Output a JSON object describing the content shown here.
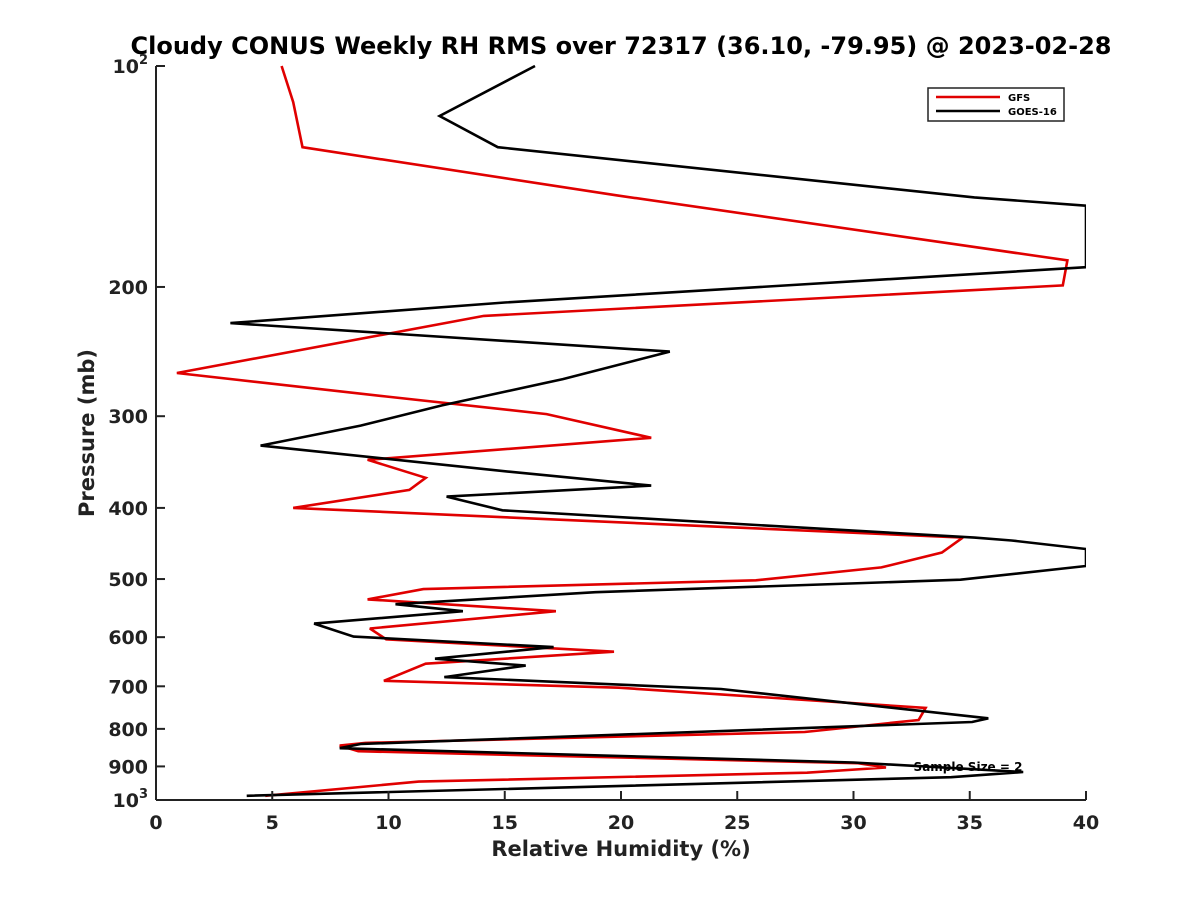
{
  "chart_data": {
    "type": "line",
    "title": "Cloudy CONUS Weekly RH RMS over 72317 (36.10, -79.95) @ 2023-02-28",
    "xlabel": "Relative Humidity (%)",
    "ylabel": "Pressure (mb)",
    "xlim": [
      0,
      40
    ],
    "ylim": [
      100,
      1000
    ],
    "y_scale": "log",
    "y_reversed": true,
    "grid": false,
    "legend_position": "top-right",
    "x_ticks": [
      "0",
      "5",
      "10",
      "15",
      "20",
      "25",
      "30",
      "35",
      "40"
    ],
    "y_ticks": [
      {
        "value": 100,
        "base": "10",
        "exp": "2"
      },
      {
        "value": 200,
        "label": "200"
      },
      {
        "value": 300,
        "label": "300"
      },
      {
        "value": 400,
        "label": "400"
      },
      {
        "value": 500,
        "label": "500"
      },
      {
        "value": 600,
        "label": "600"
      },
      {
        "value": 700,
        "label": "700"
      },
      {
        "value": 800,
        "label": "800"
      },
      {
        "value": 900,
        "label": "900"
      },
      {
        "value": 1000,
        "base": "10",
        "exp": "3"
      }
    ],
    "annotation": "Sample Size = 2",
    "series": [
      {
        "name": "GFS",
        "color": "#e00000",
        "points": [
          [
            5.4,
            100
          ],
          [
            5.9,
            112
          ],
          [
            6.3,
            129
          ],
          [
            19.8,
            150
          ],
          [
            39.2,
            184
          ],
          [
            39.0,
            199
          ],
          [
            14.1,
            219
          ],
          [
            0.9,
            262
          ],
          [
            9.9,
            282
          ],
          [
            16.8,
            298
          ],
          [
            21.3,
            321
          ],
          [
            9.1,
            344
          ],
          [
            11.6,
            364
          ],
          [
            10.9,
            378
          ],
          [
            5.9,
            400
          ],
          [
            34.7,
            439
          ],
          [
            33.8,
            460
          ],
          [
            31.2,
            482
          ],
          [
            25.8,
            502
          ],
          [
            11.5,
            516
          ],
          [
            9.1,
            533
          ],
          [
            17.2,
            553
          ],
          [
            9.2,
            584
          ],
          [
            9.9,
            604
          ],
          [
            19.7,
            628
          ],
          [
            11.6,
            652
          ],
          [
            9.8,
            688
          ],
          [
            19.9,
            703
          ],
          [
            33.1,
            749
          ],
          [
            32.8,
            778
          ],
          [
            27.9,
            808
          ],
          [
            9.0,
            836
          ],
          [
            7.9,
            843
          ],
          [
            8.7,
            858
          ],
          [
            30.2,
            891
          ],
          [
            31.4,
            903
          ],
          [
            28.0,
            918
          ],
          [
            11.3,
            944
          ],
          [
            4.7,
            987
          ]
        ]
      },
      {
        "name": "GOES-16",
        "color": "#000000",
        "points": [
          [
            16.3,
            100
          ],
          [
            12.2,
            117
          ],
          [
            14.7,
            129
          ],
          [
            35.2,
            151
          ],
          [
            40.0,
            155
          ],
          [
            40.0,
            188
          ],
          [
            15.0,
            210
          ],
          [
            3.2,
            224
          ],
          [
            22.1,
            245
          ],
          [
            17.5,
            267
          ],
          [
            12.3,
            290
          ],
          [
            8.8,
            309
          ],
          [
            4.5,
            329
          ],
          [
            15.2,
            357
          ],
          [
            21.3,
            373
          ],
          [
            12.5,
            386
          ],
          [
            14.9,
            403
          ],
          [
            35.2,
            439
          ],
          [
            36.8,
            443
          ],
          [
            40.0,
            455
          ],
          [
            40.0,
            480
          ],
          [
            34.6,
            501
          ],
          [
            18.9,
            521
          ],
          [
            10.3,
            541
          ],
          [
            13.2,
            553
          ],
          [
            6.8,
            575
          ],
          [
            8.5,
            599
          ],
          [
            17.1,
            619
          ],
          [
            12.0,
            642
          ],
          [
            15.9,
            656
          ],
          [
            12.4,
            680
          ],
          [
            24.3,
            706
          ],
          [
            35.8,
            774
          ],
          [
            35.1,
            783
          ],
          [
            8.8,
            839
          ],
          [
            7.9,
            850
          ],
          [
            30.0,
            889
          ],
          [
            37.3,
            916
          ],
          [
            34.2,
            931
          ],
          [
            3.9,
            987
          ]
        ]
      }
    ]
  }
}
